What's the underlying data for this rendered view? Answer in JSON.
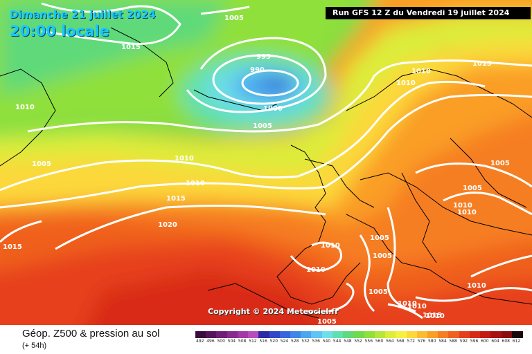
{
  "header": {
    "date": "Dimanche 21 juillet 2024",
    "local_time": "20:00 locale",
    "run": "Run GFS 12 Z du Vendredi 19 juillet 2024"
  },
  "copyright": "Copyright © 2024 Meteociel.fr",
  "legend": {
    "title": "Géop. Z500 & pression au sol",
    "lead": "(+ 54h)",
    "scale": [
      {
        "value": "492",
        "color": "#3b0a3f"
      },
      {
        "value": "496",
        "color": "#55145a"
      },
      {
        "value": "500",
        "color": "#6f1e75"
      },
      {
        "value": "504",
        "color": "#882a90"
      },
      {
        "value": "508",
        "color": "#a238aa"
      },
      {
        "value": "512",
        "color": "#b94cbd"
      },
      {
        "value": "516",
        "color": "#2a2aa8"
      },
      {
        "value": "520",
        "color": "#2f49c8"
      },
      {
        "value": "524",
        "color": "#3566dd"
      },
      {
        "value": "528",
        "color": "#3f86e8"
      },
      {
        "value": "532",
        "color": "#4aa6f0"
      },
      {
        "value": "536",
        "color": "#5ec4f2"
      },
      {
        "value": "540",
        "color": "#6edfe8"
      },
      {
        "value": "544",
        "color": "#5fe0b0"
      },
      {
        "value": "548",
        "color": "#5fd97a"
      },
      {
        "value": "552",
        "color": "#6fdc4c"
      },
      {
        "value": "556",
        "color": "#90e03a"
      },
      {
        "value": "560",
        "color": "#b8e53a"
      },
      {
        "value": "564",
        "color": "#dced3a"
      },
      {
        "value": "568",
        "color": "#f6f040"
      },
      {
        "value": "572",
        "color": "#fcd83a"
      },
      {
        "value": "576",
        "color": "#fcbc30"
      },
      {
        "value": "580",
        "color": "#fa9e28"
      },
      {
        "value": "584",
        "color": "#f67e22"
      },
      {
        "value": "588",
        "color": "#f0601e"
      },
      {
        "value": "592",
        "color": "#e6401a"
      },
      {
        "value": "596",
        "color": "#d82a16"
      },
      {
        "value": "600",
        "color": "#c41a14"
      },
      {
        "value": "604",
        "color": "#a81212"
      },
      {
        "value": "608",
        "color": "#8a0c10"
      },
      {
        "value": "612",
        "color": "#1c0808"
      }
    ]
  },
  "isobars": [
    "1005",
    "1015",
    "1010",
    "995",
    "990",
    "1000",
    "1005",
    "1010",
    "1015",
    "1005",
    "1010",
    "1015",
    "1020",
    "1015",
    "1010",
    "1010",
    "1005",
    "1005",
    "1010",
    "1005",
    "1010",
    "1010",
    "1010",
    "1010",
    "1005",
    "1015",
    "1010",
    "1010",
    "1010",
    "1005",
    "1005"
  ],
  "colors": {
    "low_center": "#2f6ed8",
    "high_zone": "#e8201a",
    "map_background": "#f2e54a"
  }
}
